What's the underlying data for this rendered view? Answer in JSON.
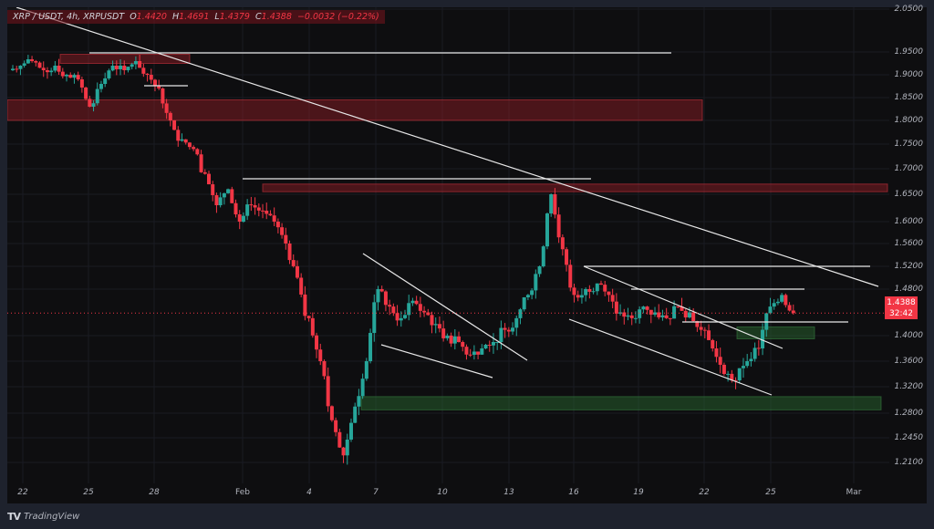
{
  "legend": {
    "symbol": "XRP / USDT, 4h, XRPUSDT",
    "open_label": "O",
    "open": "1.4420",
    "high_label": "H",
    "high": "1.4691",
    "low_label": "L",
    "low": "1.4379",
    "close_label": "C",
    "close": "1.4388",
    "change": "−0.0032 (−0.22%)"
  },
  "price_badge": {
    "price": "1.4388",
    "countdown": "32:42"
  },
  "footer": {
    "logo": "TV",
    "brand": "TradingView"
  },
  "colors": {
    "up": "#26a69a",
    "down": "#f23645",
    "background": "#0e0e10",
    "zone_red": "#5a1a20",
    "zone_green": "#1e3d22"
  },
  "chart_data": {
    "type": "candlestick",
    "title": "XRP / USDT, 4h, XRPUSDT",
    "xlabel": "",
    "ylabel": "",
    "x_ticks": [
      "22",
      "25",
      "28",
      "Feb",
      "4",
      "7",
      "10",
      "13",
      "16",
      "19",
      "22",
      "25",
      "Mar"
    ],
    "y_ticks": [
      "2.0500",
      "1.9500",
      "1.9000",
      "1.8500",
      "1.8000",
      "1.7500",
      "1.7000",
      "1.6500",
      "1.6000",
      "1.5600",
      "1.5200",
      "1.4800",
      "1.4000",
      "1.3600",
      "1.3200",
      "1.2800",
      "1.2450",
      "1.2100"
    ],
    "ylim": [
      1.19,
      2.06
    ],
    "last_price": 1.4388,
    "ohlc_last": {
      "open": 1.442,
      "high": 1.4691,
      "low": 1.4379,
      "close": 1.4388
    },
    "annotations": [
      {
        "type": "zone",
        "color": "red",
        "from": 1.925,
        "to": 1.945,
        "x_range": [
          "Jan 24",
          "Jan 29"
        ]
      },
      {
        "type": "zone",
        "color": "red",
        "from": 1.8,
        "to": 1.845,
        "x_range": [
          "Jan 21",
          "Feb 22"
        ]
      },
      {
        "type": "zone",
        "color": "red",
        "from": 1.655,
        "to": 1.67,
        "x_range": [
          "Feb 2",
          "Mar 2"
        ]
      },
      {
        "type": "zone",
        "color": "green",
        "from": 1.395,
        "to": 1.415,
        "x_range": [
          "Feb 23",
          "Feb 26"
        ]
      },
      {
        "type": "zone",
        "color": "green",
        "from": 1.285,
        "to": 1.305,
        "x_range": [
          "Feb 7",
          "Mar 2"
        ]
      },
      {
        "type": "trendline",
        "desc": "long descending resistance from Jan 21 top through Feb 15 high"
      },
      {
        "type": "falling wedge",
        "desc": "Feb 7 – Feb 13"
      },
      {
        "type": "descending channel",
        "desc": "Feb 16 – Feb 24"
      },
      {
        "type": "horizontal",
        "level": 1.945
      },
      {
        "type": "horizontal",
        "level": 1.675
      },
      {
        "type": "horizontal",
        "level": 1.515
      },
      {
        "type": "horizontal",
        "level": 1.475
      },
      {
        "type": "horizontal",
        "level": 1.425
      }
    ],
    "approx_closes": [
      1.92,
      1.93,
      1.91,
      1.92,
      1.9,
      1.89,
      1.83,
      1.88,
      1.92,
      1.91,
      1.93,
      1.9,
      1.87,
      1.8,
      1.76,
      1.74,
      1.69,
      1.63,
      1.66,
      1.6,
      1.63,
      1.62,
      1.6,
      1.56,
      1.5,
      1.43,
      1.36,
      1.27,
      1.22,
      1.29,
      1.36,
      1.48,
      1.45,
      1.43,
      1.46,
      1.44,
      1.42,
      1.4,
      1.39,
      1.37,
      1.38,
      1.39,
      1.41,
      1.43,
      1.47,
      1.52,
      1.65,
      1.55,
      1.47,
      1.48,
      1.49,
      1.47,
      1.44,
      1.43,
      1.45,
      1.44,
      1.43,
      1.45,
      1.44,
      1.41,
      1.38,
      1.34,
      1.33,
      1.36,
      1.38,
      1.45,
      1.47,
      1.4388
    ]
  }
}
